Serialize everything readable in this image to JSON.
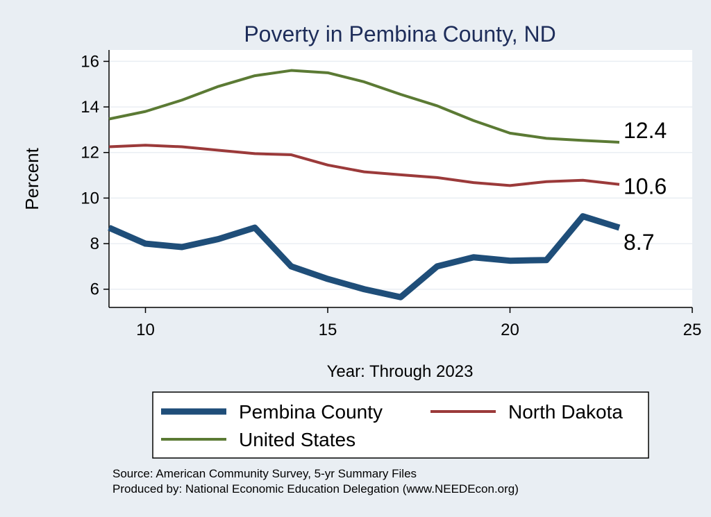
{
  "chart_data": {
    "type": "line",
    "title": "Poverty in Pembina County, ND",
    "xlabel": "Year: Through 2023",
    "ylabel": "Percent",
    "xlim": [
      9,
      25
    ],
    "ylim": [
      5.2,
      16.5
    ],
    "xticks": [
      10,
      15,
      20,
      25
    ],
    "yticks": [
      6,
      8,
      10,
      12,
      14,
      16
    ],
    "grid": true,
    "legend_position": "bottom",
    "x": [
      9,
      10,
      11,
      12,
      13,
      14,
      15,
      16,
      17,
      18,
      19,
      20,
      21,
      22,
      23
    ],
    "series": [
      {
        "name": "Pembina County",
        "color": "#1f4e79",
        "values": [
          8.7,
          8.0,
          7.85,
          8.2,
          8.7,
          7.0,
          6.45,
          6.0,
          5.65,
          7.0,
          7.4,
          7.25,
          7.28,
          9.2,
          8.7
        ],
        "end_label": "8.7"
      },
      {
        "name": "North Dakota",
        "color": "#9b3a3a",
        "values": [
          12.25,
          12.32,
          12.25,
          12.1,
          11.95,
          11.9,
          11.45,
          11.15,
          11.02,
          10.9,
          10.68,
          10.55,
          10.72,
          10.78,
          10.6
        ],
        "end_label": "10.6"
      },
      {
        "name": "United States",
        "color": "#5b7a34",
        "values": [
          13.47,
          13.8,
          14.3,
          14.9,
          15.37,
          15.6,
          15.5,
          15.1,
          14.55,
          14.05,
          13.4,
          12.85,
          12.62,
          12.53,
          12.45
        ],
        "end_label": "12.4"
      }
    ],
    "source_lines": [
      "Source: American Community Survey, 5-yr Summary Files",
      "Produced by: National Economic Education Delegation (www.NEEDEcon.org)"
    ]
  }
}
